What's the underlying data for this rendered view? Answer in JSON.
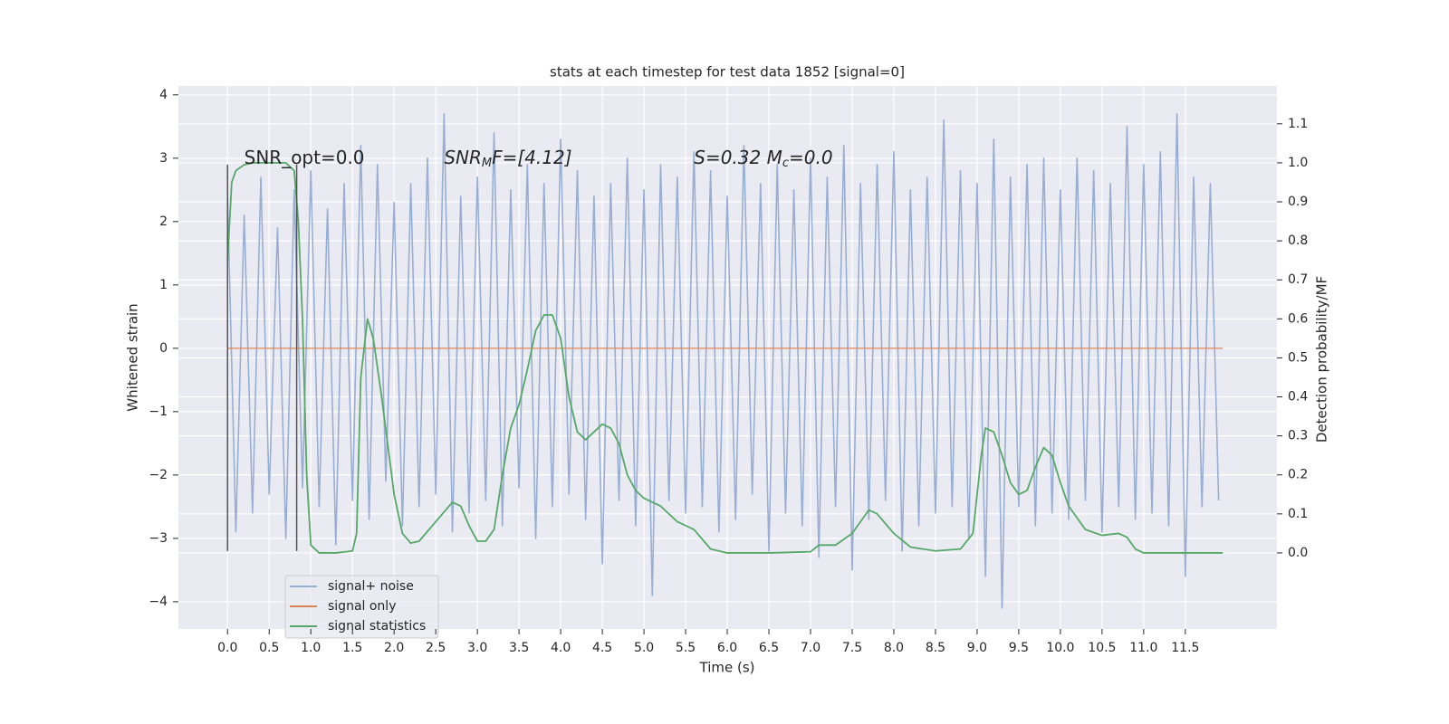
{
  "chart_data": {
    "type": "line",
    "title": "stats at each timestep for test data 1852 [signal=0]",
    "xlabel": "Time (s)",
    "ylabel": "Whitened strain",
    "y2label": "Detection probability/MF",
    "xlim": [
      -0.59,
      12.6
    ],
    "ylim": [
      -4.43,
      4.14
    ],
    "y2lim": [
      -0.195,
      1.197
    ],
    "xticks": [
      {
        "value": 0,
        "label": "0.0"
      },
      {
        "value": 0.5,
        "label": "0.5"
      },
      {
        "value": 1,
        "label": "1.0"
      },
      {
        "value": 1.5,
        "label": "1.5"
      },
      {
        "value": 2,
        "label": "2.0"
      },
      {
        "value": 2.5,
        "label": "2.5"
      },
      {
        "value": 3,
        "label": "3.0"
      },
      {
        "value": 3.5,
        "label": "3.5"
      },
      {
        "value": 4,
        "label": "4.0"
      },
      {
        "value": 4.5,
        "label": "4.5"
      },
      {
        "value": 5,
        "label": "5.0"
      },
      {
        "value": 5.5,
        "label": "5.5"
      },
      {
        "value": 6,
        "label": "6.0"
      },
      {
        "value": 6.5,
        "label": "6.5"
      },
      {
        "value": 7,
        "label": "7.0"
      },
      {
        "value": 7.5,
        "label": "7.5"
      },
      {
        "value": 8,
        "label": "8.0"
      },
      {
        "value": 8.5,
        "label": "8.5"
      },
      {
        "value": 9,
        "label": "9.0"
      },
      {
        "value": 9.5,
        "label": "9.5"
      },
      {
        "value": 10,
        "label": "10.0"
      },
      {
        "value": 10.5,
        "label": "10.5"
      },
      {
        "value": 11,
        "label": "11.0"
      },
      {
        "value": 11.5,
        "label": "11.5"
      }
    ],
    "yticks": [
      {
        "value": -4,
        "label": "−4"
      },
      {
        "value": -3,
        "label": "−3"
      },
      {
        "value": -2,
        "label": "−2"
      },
      {
        "value": -1,
        "label": "−1"
      },
      0,
      1,
      2,
      3,
      4
    ],
    "y2ticks": [
      {
        "value": 0,
        "label": "0.0"
      },
      {
        "value": 0.1,
        "label": "0.1"
      },
      {
        "value": 0.2,
        "label": "0.2"
      },
      {
        "value": 0.3,
        "label": "0.3"
      },
      {
        "value": 0.4,
        "label": "0.4"
      },
      {
        "value": 0.5,
        "label": "0.5"
      },
      {
        "value": 0.6,
        "label": "0.6"
      },
      {
        "value": 0.7,
        "label": "0.7"
      },
      {
        "value": 0.8,
        "label": "0.8"
      },
      {
        "value": 0.9,
        "label": "0.9"
      },
      {
        "value": 1,
        "label": "1.0"
      },
      {
        "value": 1.1,
        "label": "1.1"
      }
    ],
    "grid": true,
    "legend": "lower left",
    "series": [
      {
        "name": "signal+ noise",
        "color": "#99aed3",
        "x": [
          0,
          0.1,
          0.2,
          0.3,
          0.4,
          0.5,
          0.6,
          0.7,
          0.8,
          0.9,
          1,
          1.1,
          1.2,
          1.3,
          1.4,
          1.5,
          1.6,
          1.7,
          1.8,
          1.9,
          2,
          2.1,
          2.2,
          2.3,
          2.4,
          2.5,
          2.6,
          2.7,
          2.8,
          2.9,
          3,
          3.1,
          3.2,
          3.3,
          3.4,
          3.5,
          3.6,
          3.7,
          3.8,
          3.9,
          4,
          4.1,
          4.2,
          4.3,
          4.4,
          4.5,
          4.6,
          4.7,
          4.8,
          4.9,
          5,
          5.1,
          5.2,
          5.3,
          5.4,
          5.5,
          5.6,
          5.7,
          5.8,
          5.9,
          6,
          6.1,
          6.2,
          6.3,
          6.4,
          6.5,
          6.6,
          6.7,
          6.8,
          6.9,
          7,
          7.1,
          7.2,
          7.3,
          7.4,
          7.5,
          7.6,
          7.7,
          7.8,
          7.9,
          8,
          8.1,
          8.2,
          8.3,
          8.4,
          8.5,
          8.6,
          8.7,
          8.8,
          8.9,
          9,
          9.1,
          9.2,
          9.3,
          9.4,
          9.5,
          9.6,
          9.7,
          9.8,
          9.9,
          10,
          10.1,
          10.2,
          10.3,
          10.4,
          10.5,
          10.6,
          10.7,
          10.8,
          10.9,
          11,
          11.1,
          11.2,
          11.3,
          11.4,
          11.5,
          11.6,
          11.7,
          11.8,
          11.9
        ],
        "values": [
          2.4,
          -2.9,
          2.1,
          -2.6,
          2.7,
          -2.3,
          1.9,
          -3.0,
          2.5,
          -2.2,
          2.8,
          -2.5,
          2.2,
          -3.1,
          2.6,
          -2.4,
          3.2,
          -2.7,
          2.9,
          -2.1,
          2.3,
          -2.8,
          2.6,
          -2.5,
          3.0,
          -2.3,
          3.7,
          -2.9,
          2.4,
          -2.6,
          2.7,
          -2.4,
          3.4,
          -2.8,
          2.5,
          -2.2,
          2.9,
          -3.0,
          2.6,
          -2.5,
          3.3,
          -2.3,
          2.8,
          -2.7,
          2.4,
          -3.4,
          2.6,
          -2.4,
          3.0,
          -2.8,
          2.5,
          -3.9,
          2.9,
          -2.4,
          2.7,
          -2.6,
          3.1,
          -2.5,
          2.8,
          -2.9,
          2.4,
          -2.7,
          3.2,
          -2.3,
          2.6,
          -3.2,
          2.9,
          -2.6,
          2.5,
          -2.8,
          3.0,
          -3.3,
          2.7,
          -2.5,
          3.2,
          -3.5,
          2.6,
          -2.7,
          2.9,
          -2.4,
          3.1,
          -3.2,
          2.5,
          -2.8,
          2.7,
          -2.6,
          3.6,
          -2.5,
          2.8,
          -3.0,
          2.6,
          -3.6,
          3.3,
          -4.1,
          2.7,
          -2.5,
          2.9,
          -2.8,
          3.0,
          -2.6,
          2.5,
          -2.7,
          3.0,
          -2.4,
          2.8,
          -2.9,
          2.6,
          -2.5,
          3.5,
          -2.7,
          2.9,
          -2.6,
          3.1,
          -2.8,
          3.7,
          -3.6,
          2.7,
          -2.5,
          2.6,
          -2.4
        ]
      },
      {
        "name": "signal only",
        "color": "#dd8452",
        "x": [
          0,
          11.95
        ],
        "values": [
          0,
          0
        ]
      },
      {
        "name": "signal statistics",
        "color": "#55a868",
        "axis": "y2",
        "x": [
          0,
          0.05,
          0.1,
          0.2,
          0.3,
          0.5,
          0.7,
          0.8,
          0.85,
          0.9,
          0.95,
          1.0,
          1.1,
          1.3,
          1.5,
          1.55,
          1.6,
          1.68,
          1.75,
          1.85,
          2.0,
          2.1,
          2.2,
          2.3,
          2.5,
          2.7,
          2.8,
          2.9,
          3.0,
          3.1,
          3.2,
          3.3,
          3.4,
          3.5,
          3.6,
          3.7,
          3.8,
          3.9,
          4.0,
          4.1,
          4.2,
          4.3,
          4.4,
          4.5,
          4.6,
          4.7,
          4.8,
          4.9,
          5.0,
          5.2,
          5.4,
          5.6,
          5.8,
          6.0,
          6.5,
          7.0,
          7.1,
          7.3,
          7.5,
          7.7,
          7.8,
          8.0,
          8.2,
          8.5,
          8.8,
          8.95,
          9.05,
          9.1,
          9.2,
          9.3,
          9.4,
          9.5,
          9.6,
          9.7,
          9.8,
          9.9,
          10.0,
          10.1,
          10.3,
          10.5,
          10.7,
          10.8,
          10.9,
          11.0,
          11.5,
          11.95
        ],
        "values": [
          0.75,
          0.95,
          0.98,
          0.995,
          1.0,
          1.0,
          1.0,
          0.98,
          0.85,
          0.6,
          0.2,
          0.02,
          0.0,
          0.0,
          0.005,
          0.05,
          0.45,
          0.6,
          0.55,
          0.4,
          0.15,
          0.05,
          0.025,
          0.03,
          0.08,
          0.13,
          0.12,
          0.07,
          0.03,
          0.03,
          0.06,
          0.2,
          0.32,
          0.38,
          0.47,
          0.57,
          0.61,
          0.61,
          0.55,
          0.4,
          0.31,
          0.29,
          0.31,
          0.33,
          0.32,
          0.28,
          0.2,
          0.16,
          0.14,
          0.12,
          0.08,
          0.06,
          0.01,
          0.0,
          0.0,
          0.003,
          0.02,
          0.02,
          0.05,
          0.11,
          0.1,
          0.05,
          0.015,
          0.005,
          0.01,
          0.05,
          0.25,
          0.32,
          0.31,
          0.25,
          0.18,
          0.15,
          0.16,
          0.22,
          0.27,
          0.25,
          0.18,
          0.12,
          0.06,
          0.045,
          0.05,
          0.04,
          0.01,
          0.0,
          0.0,
          0.0
        ]
      }
    ],
    "vlines": {
      "x": [
        0,
        0.83
      ],
      "ymin": -3.2,
      "ymax": 2.9,
      "color": "#555555"
    },
    "annotations": [
      {
        "parts": [
          "SNR_opt=0.0"
        ],
        "x": 0.2,
        "y": 3.0
      },
      {
        "parts": [
          "SNR",
          "M",
          "F=[4.12]"
        ],
        "x": 2.6,
        "y": 3.0
      },
      {
        "parts": [
          "S=0.32   M",
          "c",
          "=0.0"
        ],
        "x": 5.6,
        "y": 3.0
      }
    ]
  }
}
